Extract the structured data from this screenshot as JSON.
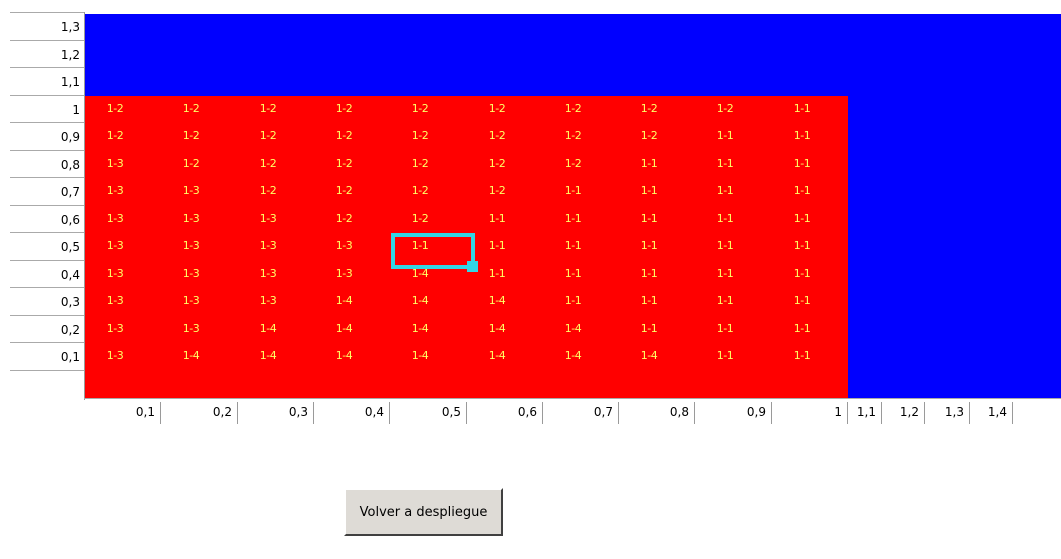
{
  "y_labels": [
    "1,3",
    "1,2",
    "1,1",
    "1",
    "0,9",
    "0,8",
    "0,7",
    "0,6",
    "0,5",
    "0,4",
    "0,3",
    "0,2",
    "0,1"
  ],
  "x_labels": [
    "0,1",
    "0,2",
    "0,3",
    "0,4",
    "0,5",
    "0,6",
    "0,7",
    "0,8",
    "0,9",
    "1",
    "1,1",
    "1,2",
    "1,3",
    "1,4"
  ],
  "colors": {
    "red_region": "#ff0000",
    "blue_region": "#0000ff",
    "cell_text": "#ffff66",
    "selection": "#33d6e6"
  },
  "red_rows": [
    [
      "1-2",
      "1-2",
      "1-2",
      "1-2",
      "1-2",
      "1-2",
      "1-2",
      "1-2",
      "1-2",
      "1-1"
    ],
    [
      "1-2",
      "1-2",
      "1-2",
      "1-2",
      "1-2",
      "1-2",
      "1-2",
      "1-2",
      "1-1",
      "1-1"
    ],
    [
      "1-3",
      "1-2",
      "1-2",
      "1-2",
      "1-2",
      "1-2",
      "1-2",
      "1-1",
      "1-1",
      "1-1"
    ],
    [
      "1-3",
      "1-3",
      "1-2",
      "1-2",
      "1-2",
      "1-2",
      "1-1",
      "1-1",
      "1-1",
      "1-1"
    ],
    [
      "1-3",
      "1-3",
      "1-3",
      "1-2",
      "1-2",
      "1-1",
      "1-1",
      "1-1",
      "1-1",
      "1-1"
    ],
    [
      "1-3",
      "1-3",
      "1-3",
      "1-3",
      "1-1",
      "1-1",
      "1-1",
      "1-1",
      "1-1",
      "1-1"
    ],
    [
      "1-3",
      "1-3",
      "1-3",
      "1-3",
      "1-4",
      "1-1",
      "1-1",
      "1-1",
      "1-1",
      "1-1"
    ],
    [
      "1-3",
      "1-3",
      "1-3",
      "1-4",
      "1-4",
      "1-4",
      "1-1",
      "1-1",
      "1-1",
      "1-1"
    ],
    [
      "1-3",
      "1-3",
      "1-4",
      "1-4",
      "1-4",
      "1-4",
      "1-4",
      "1-1",
      "1-1",
      "1-1"
    ],
    [
      "1-3",
      "1-4",
      "1-4",
      "1-4",
      "1-4",
      "1-4",
      "1-4",
      "1-4",
      "1-1",
      "1-1"
    ]
  ],
  "selected_cell": {
    "row_label": "0,5",
    "col_label": "0,5",
    "value": "1-1"
  },
  "button": {
    "label": "Volver a despliegue"
  }
}
